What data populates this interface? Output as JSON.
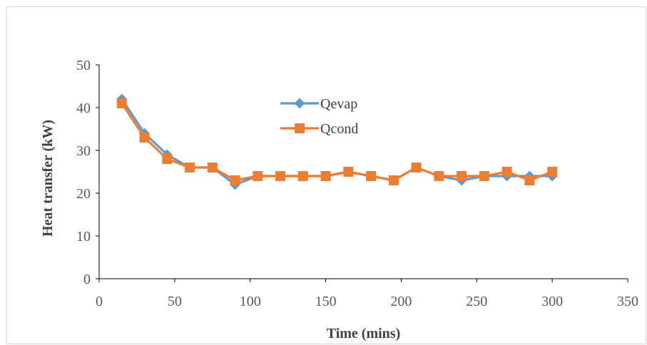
{
  "chart_data": {
    "type": "line",
    "title": "",
    "xlabel": "Time (mins)",
    "ylabel": "Heat transfer (kW)",
    "xlim": [
      0,
      350
    ],
    "ylim": [
      0,
      50
    ],
    "xticks": [
      0,
      50,
      100,
      150,
      200,
      250,
      300,
      350
    ],
    "yticks": [
      0,
      10,
      20,
      30,
      40,
      50
    ],
    "grid": false,
    "legend_position": "center-top",
    "x": [
      15,
      30,
      45,
      60,
      75,
      90,
      105,
      120,
      135,
      150,
      165,
      180,
      195,
      210,
      225,
      240,
      255,
      270,
      285,
      300
    ],
    "series": [
      {
        "name": "Qevap",
        "marker": "diamond",
        "color": "#5B9BD5",
        "values": [
          42,
          34,
          29,
          26,
          26,
          22,
          24,
          24,
          24,
          24,
          25,
          24,
          23,
          26,
          24,
          23,
          24,
          24,
          24,
          24
        ]
      },
      {
        "name": "Qcond",
        "marker": "square",
        "color": "#ED7D31",
        "values": [
          41,
          33,
          28,
          26,
          26,
          23,
          24,
          24,
          24,
          24,
          25,
          24,
          23,
          26,
          24,
          24,
          24,
          25,
          23,
          25
        ]
      }
    ]
  }
}
